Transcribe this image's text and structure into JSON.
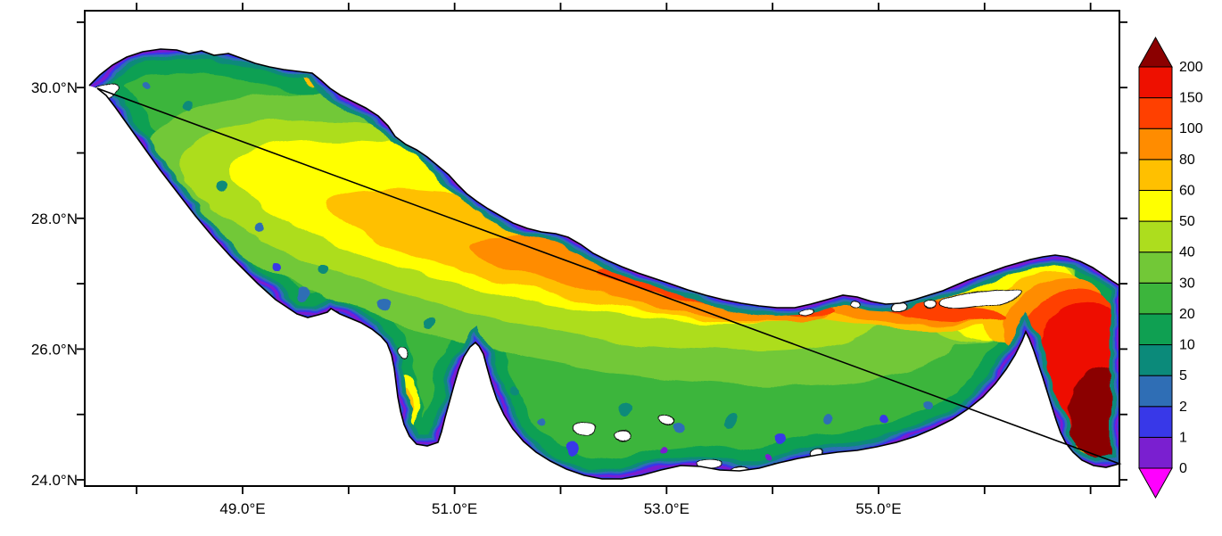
{
  "figure": {
    "background": "#FFFFFF",
    "frame_color": "#000000"
  },
  "chart_data": {
    "type": "heatmap",
    "title": "",
    "xlabel": "",
    "ylabel": "",
    "region_depicted": "Persian Gulf basin with Strait of Hormuz and Gulf of Oman at eastern edge",
    "grid": false,
    "x_axis": {
      "tick_labels": [
        "49.0°E",
        "51.0°E",
        "53.0°E",
        "55.0°E"
      ],
      "tick_lons": [
        49,
        51,
        53,
        55
      ],
      "minor_tick_lons": [
        48,
        50,
        52,
        54,
        56,
        57
      ],
      "range_lon": [
        47.5,
        57.3
      ]
    },
    "y_axis": {
      "tick_labels": [
        "30.0°N",
        "28.0°N",
        "26.0°N",
        "24.0°N"
      ],
      "tick_lats": [
        30,
        28,
        26,
        24
      ],
      "minor_tick_lats": [
        25,
        27,
        29,
        31
      ],
      "range_lat": [
        23.9,
        31.2
      ]
    },
    "colorbar": {
      "position": "right",
      "levels": [
        0,
        1,
        2,
        5,
        10,
        20,
        30,
        40,
        50,
        60,
        80,
        100,
        150,
        200
      ],
      "boundary_labels": [
        "0",
        "1",
        "2",
        "5",
        "10",
        "20",
        "30",
        "40",
        "50",
        "60",
        "80",
        "100",
        "150",
        "200"
      ],
      "cell_colors_low_to_high": [
        "#7A1FD0",
        "#3838E8",
        "#2F6EB5",
        "#0B8A7A",
        "#0FA052",
        "#3CB53C",
        "#72C837",
        "#ADDD1E",
        "#FFFF00",
        "#FFC000",
        "#FF8C00",
        "#FF4000",
        "#EE1000"
      ],
      "under_arrow_color": "#FF00FF",
      "over_arrow_color": "#8B0000"
    },
    "spatial_pattern": "Shallow coastal fringe in purple/blue/teal (0-10); broad green interior (10-30); yellow to orange axial band (50-100) running northwest to southeast along the basin; red (100-200) at the Strait of Hormuz; dark red (>200) in the Gulf of Oman at the far eastern edge; white patches are land/islands including the Qatar peninsula notch on the southern coast."
  }
}
